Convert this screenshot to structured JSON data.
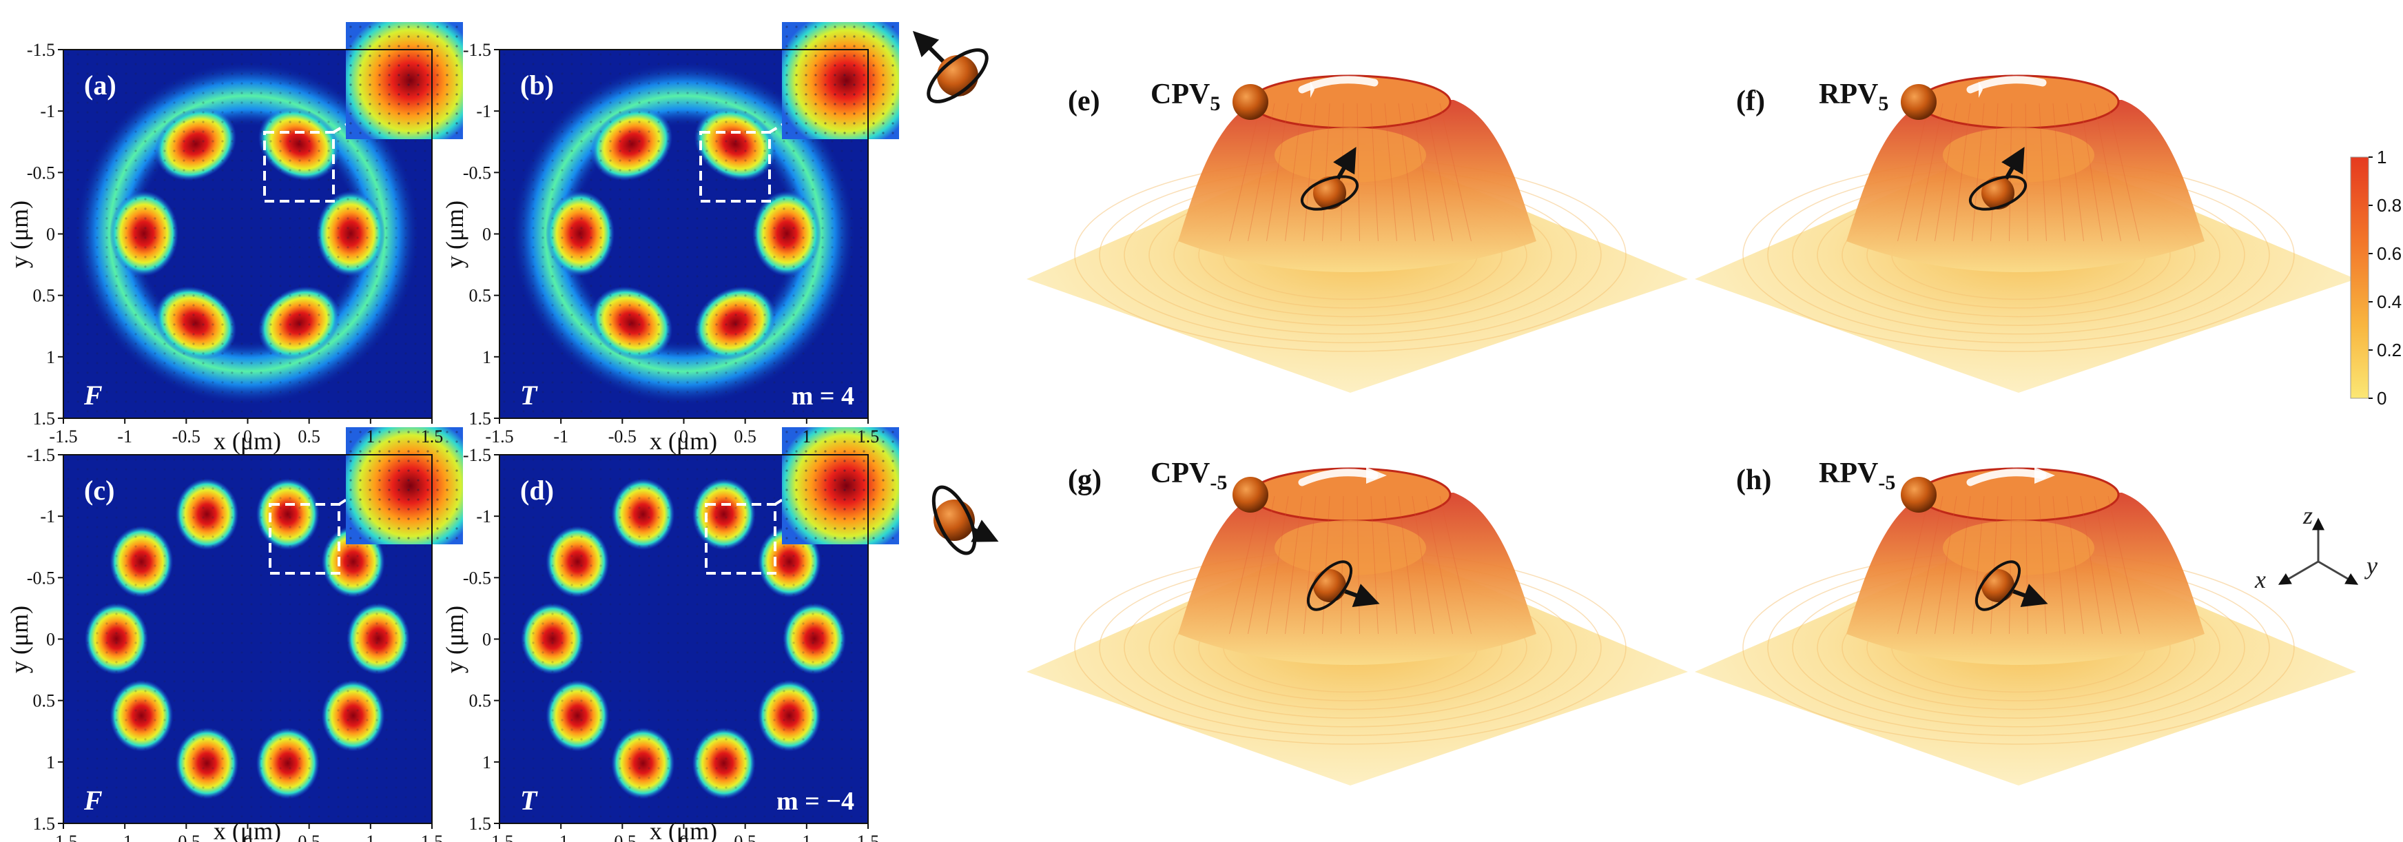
{
  "panels": {
    "a": {
      "label": "(a)",
      "field": "F",
      "m": ""
    },
    "b": {
      "label": "(b)",
      "field": "T",
      "m": "m = 4"
    },
    "c": {
      "label": "(c)",
      "field": "F",
      "m": ""
    },
    "d": {
      "label": "(d)",
      "field": "T",
      "m": "m = −4"
    }
  },
  "axes": {
    "xlabel": "x (μm)",
    "ylabel": "y (μm)",
    "x_ticks": [
      "-1.5",
      "-1",
      "-0.5",
      "0",
      "0.5",
      "1",
      "1.5"
    ],
    "y_ticks": [
      "-1.5",
      "-1",
      "-0.5",
      "0",
      "0.5",
      "1",
      "1.5"
    ]
  },
  "surfaces": {
    "e": {
      "label": "(e)",
      "title": "CPV",
      "sub": "5"
    },
    "f": {
      "label": "(f)",
      "title": "RPV",
      "sub": "5"
    },
    "g": {
      "label": "(g)",
      "title": "CPV",
      "sub": "-5"
    },
    "h": {
      "label": "(h)",
      "title": "RPV",
      "sub": "-5"
    }
  },
  "colorbar": {
    "ticks": [
      "1",
      "0.8",
      "0.6",
      "0.4",
      "0.2",
      "0"
    ],
    "top_color": "#e53a1f",
    "bottom_color": "#fbe775"
  },
  "axis_triad": {
    "x": "x",
    "y": "y",
    "z": "z"
  },
  "colors": {
    "jet_background": "#0a1e9a",
    "hot_spot": "#b0101a",
    "surface_rim": "#d9442a",
    "surface_base": "#fbe8a0",
    "particle": "#c45a10"
  }
}
